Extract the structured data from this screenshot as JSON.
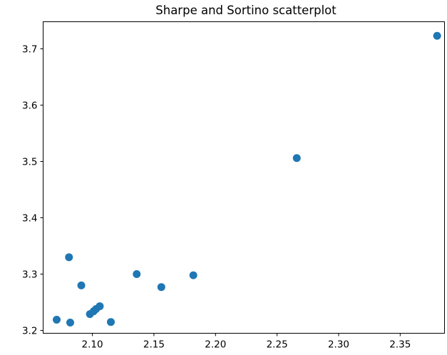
{
  "chart_data": {
    "type": "scatter",
    "title": "Sharpe and Sortino scatterplot",
    "xlabel": "",
    "ylabel": "",
    "xlim": [
      2.06,
      2.386
    ],
    "ylim": [
      3.195,
      3.748
    ],
    "xticks": [
      "2.10",
      "2.15",
      "2.20",
      "2.25",
      "2.30",
      "2.35"
    ],
    "yticks": [
      "3.2",
      "3.3",
      "3.4",
      "3.5",
      "3.6",
      "3.7"
    ],
    "grid": false,
    "marker_color": "#1f77b4",
    "points": [
      {
        "x": 2.071,
        "y": 3.219
      },
      {
        "x": 2.082,
        "y": 3.214
      },
      {
        "x": 2.081,
        "y": 3.33
      },
      {
        "x": 2.091,
        "y": 3.28
      },
      {
        "x": 2.098,
        "y": 3.229
      },
      {
        "x": 2.101,
        "y": 3.234
      },
      {
        "x": 2.103,
        "y": 3.238
      },
      {
        "x": 2.106,
        "y": 3.243
      },
      {
        "x": 2.115,
        "y": 3.215
      },
      {
        "x": 2.136,
        "y": 3.3
      },
      {
        "x": 2.156,
        "y": 3.277
      },
      {
        "x": 2.182,
        "y": 3.298
      },
      {
        "x": 2.266,
        "y": 3.506
      },
      {
        "x": 2.38,
        "y": 3.723
      }
    ]
  }
}
